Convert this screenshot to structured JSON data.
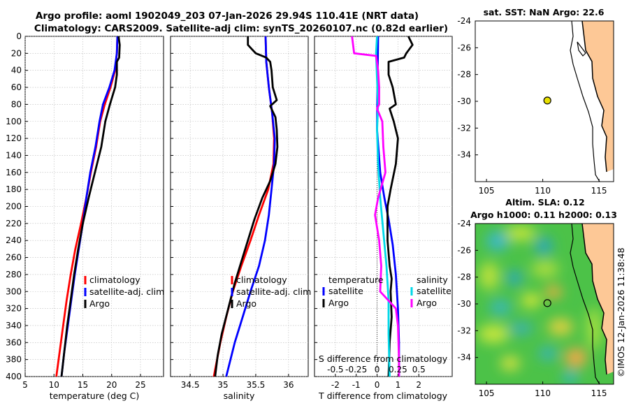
{
  "title": {
    "line1": "Argo profile: aoml 1902049_203 07-Jan-2026 29.94S 110.41E (NRT data)",
    "line2": "Climatology: CARS2009. Satellite-adj clim: synTS_20260107.nc (0.82d earlier)"
  },
  "watermark": "©IMOS 12-Jan-2026 11:38:48",
  "colors": {
    "climatology": "#ff0000",
    "satellite": "#0000ff",
    "argo": "#000000",
    "argo_s": "#ff00ff",
    "sat_s": "#00d8e8",
    "land": "#fdc896"
  },
  "chart_data": [
    {
      "type": "line",
      "id": "temperature",
      "xlabel": "temperature (deg C)",
      "ylabel": "",
      "xlim": [
        5,
        29
      ],
      "ylim": [
        400,
        0
      ],
      "xticks": [
        5,
        10,
        15,
        20,
        25
      ],
      "yticks": [
        0,
        20,
        40,
        60,
        80,
        100,
        120,
        140,
        160,
        180,
        200,
        220,
        240,
        260,
        280,
        300,
        320,
        340,
        360,
        380,
        400
      ],
      "legend": [
        "climatology",
        "satellite-adj. clim",
        "Argo"
      ],
      "legend_placement": "lower-right",
      "series": [
        {
          "name": "climatology",
          "color": "#ff0000",
          "points": [
            [
              21.0,
              0
            ],
            [
              20.9,
              20
            ],
            [
              20.6,
              40
            ],
            [
              19.8,
              60
            ],
            [
              18.8,
              80
            ],
            [
              18.0,
              100
            ],
            [
              17.3,
              130
            ],
            [
              16.4,
              160
            ],
            [
              15.6,
              190
            ],
            [
              14.7,
              220
            ],
            [
              13.7,
              250
            ],
            [
              12.9,
              280
            ],
            [
              12.2,
              310
            ],
            [
              11.6,
              340
            ],
            [
              11.0,
              370
            ],
            [
              10.4,
              400
            ]
          ]
        },
        {
          "name": "satellite-adj. clim",
          "color": "#0000ff",
          "points": [
            [
              21.0,
              0
            ],
            [
              20.9,
              20
            ],
            [
              20.5,
              40
            ],
            [
              19.6,
              60
            ],
            [
              18.5,
              80
            ],
            [
              17.9,
              100
            ],
            [
              17.2,
              130
            ],
            [
              16.3,
              160
            ],
            [
              15.6,
              190
            ],
            [
              15.0,
              220
            ],
            [
              14.3,
              250
            ],
            [
              13.6,
              280
            ],
            [
              13.0,
              310
            ],
            [
              12.4,
              340
            ],
            [
              11.8,
              370
            ],
            [
              11.3,
              400
            ]
          ]
        },
        {
          "name": "Argo",
          "color": "#000000",
          "points": [
            [
              21.2,
              0
            ],
            [
              21.4,
              10
            ],
            [
              21.3,
              25
            ],
            [
              20.9,
              30
            ],
            [
              20.9,
              45
            ],
            [
              20.6,
              60
            ],
            [
              19.7,
              80
            ],
            [
              18.9,
              100
            ],
            [
              18.2,
              130
            ],
            [
              17.1,
              160
            ],
            [
              16.0,
              190
            ],
            [
              15.0,
              220
            ],
            [
              14.2,
              250
            ],
            [
              13.5,
              280
            ],
            [
              12.9,
              310
            ],
            [
              12.3,
              340
            ],
            [
              11.8,
              370
            ],
            [
              11.3,
              400
            ]
          ]
        }
      ]
    },
    {
      "type": "line",
      "id": "salinity",
      "xlabel": "salinity",
      "xlim": [
        34.2,
        36.3
      ],
      "ylim": [
        400,
        0
      ],
      "xticks": [
        34.5,
        35,
        35.5,
        36
      ],
      "legend": [
        "climatology",
        "satellite-adj. clim",
        "Argo"
      ],
      "legend_placement": "lower-right",
      "series": [
        {
          "name": "climatology",
          "color": "#ff0000",
          "points": [
            [
              35.65,
              0
            ],
            [
              35.66,
              30
            ],
            [
              35.7,
              60
            ],
            [
              35.75,
              90
            ],
            [
              35.78,
              120
            ],
            [
              35.77,
              150
            ],
            [
              35.69,
              180
            ],
            [
              35.55,
              210
            ],
            [
              35.42,
              240
            ],
            [
              35.28,
              270
            ],
            [
              35.15,
              300
            ],
            [
              35.05,
              330
            ],
            [
              34.96,
              360
            ],
            [
              34.86,
              400
            ]
          ]
        },
        {
          "name": "satellite-adj. clim",
          "color": "#0000ff",
          "points": [
            [
              35.65,
              0
            ],
            [
              35.66,
              30
            ],
            [
              35.7,
              60
            ],
            [
              35.75,
              90
            ],
            [
              35.79,
              120
            ],
            [
              35.78,
              150
            ],
            [
              35.74,
              180
            ],
            [
              35.7,
              210
            ],
            [
              35.64,
              240
            ],
            [
              35.55,
              270
            ],
            [
              35.42,
              300
            ],
            [
              35.3,
              330
            ],
            [
              35.18,
              360
            ],
            [
              35.05,
              400
            ]
          ]
        },
        {
          "name": "Argo",
          "color": "#000000",
          "points": [
            [
              35.38,
              0
            ],
            [
              35.38,
              10
            ],
            [
              35.44,
              15
            ],
            [
              35.5,
              20
            ],
            [
              35.66,
              25
            ],
            [
              35.72,
              30
            ],
            [
              35.74,
              40
            ],
            [
              35.76,
              60
            ],
            [
              35.82,
              75
            ],
            [
              35.72,
              82
            ],
            [
              35.8,
              95
            ],
            [
              35.82,
              110
            ],
            [
              35.83,
              130
            ],
            [
              35.8,
              150
            ],
            [
              35.72,
              170
            ],
            [
              35.6,
              190
            ],
            [
              35.48,
              215
            ],
            [
              35.38,
              240
            ],
            [
              35.28,
              265
            ],
            [
              35.18,
              290
            ],
            [
              35.08,
              320
            ],
            [
              34.98,
              350
            ],
            [
              34.92,
              375
            ],
            [
              34.88,
              400
            ]
          ]
        }
      ]
    },
    {
      "type": "line",
      "id": "difference",
      "xlabel": "T difference from climatology",
      "xlabel_top": "S difference from climatology",
      "xlim": [
        -3,
        3.6
      ],
      "ylim": [
        400,
        0
      ],
      "xticks": [
        -2,
        -1,
        0,
        1,
        2
      ],
      "xticks_s": [
        "-0.5",
        "-0.25",
        "0",
        "0.25",
        "0.5"
      ],
      "legend_t": {
        "title": "temperature",
        "items": [
          "satellite",
          "Argo"
        ]
      },
      "legend_s": {
        "title": "salinity",
        "items": [
          "satellite",
          "Argo"
        ]
      },
      "series": [
        {
          "name": "T satellite",
          "color": "#0000ff",
          "points": [
            [
              0.05,
              0
            ],
            [
              0.02,
              60
            ],
            [
              0.0,
              110
            ],
            [
              0.15,
              160
            ],
            [
              0.35,
              190
            ],
            [
              0.55,
              215
            ],
            [
              0.75,
              245
            ],
            [
              0.9,
              280
            ],
            [
              1.0,
              320
            ],
            [
              1.05,
              360
            ],
            [
              1.05,
              400
            ]
          ]
        },
        {
          "name": "T Argo",
          "color": "#000000",
          "points": [
            [
              1.5,
              0
            ],
            [
              1.7,
              10
            ],
            [
              1.4,
              20
            ],
            [
              1.3,
              25
            ],
            [
              0.55,
              30
            ],
            [
              0.55,
              45
            ],
            [
              0.75,
              60
            ],
            [
              0.9,
              80
            ],
            [
              0.6,
              85
            ],
            [
              0.8,
              100
            ],
            [
              1.0,
              120
            ],
            [
              0.9,
              150
            ],
            [
              0.65,
              180
            ],
            [
              0.5,
              200
            ],
            [
              0.5,
              240
            ],
            [
              0.6,
              270
            ],
            [
              0.7,
              285
            ],
            [
              0.65,
              300
            ],
            [
              0.7,
              330
            ],
            [
              0.6,
              360
            ],
            [
              0.55,
              400
            ]
          ]
        },
        {
          "name": "S satellite",
          "color": "#00d8e8",
          "points": [
            [
              0.0,
              0
            ],
            [
              -0.05,
              20
            ],
            [
              0.0,
              50
            ],
            [
              0.05,
              80
            ],
            [
              0.0,
              110
            ],
            [
              0.05,
              150
            ],
            [
              0.15,
              190
            ],
            [
              0.3,
              230
            ],
            [
              0.45,
              270
            ],
            [
              0.55,
              310
            ],
            [
              0.55,
              350
            ],
            [
              0.6,
              400
            ]
          ]
        },
        {
          "name": "S Argo",
          "color": "#ff00ff",
          "points": [
            [
              -1.2,
              0
            ],
            [
              -1.1,
              20
            ],
            [
              -0.05,
              23
            ],
            [
              0.05,
              40
            ],
            [
              0.1,
              60
            ],
            [
              0.1,
              80
            ],
            [
              0.0,
              85
            ],
            [
              0.25,
              100
            ],
            [
              0.3,
              130
            ],
            [
              0.4,
              160
            ],
            [
              0.05,
              190
            ],
            [
              -0.1,
              210
            ],
            [
              0.1,
              240
            ],
            [
              0.2,
              270
            ],
            [
              0.15,
              300
            ],
            [
              0.9,
              320
            ],
            [
              1.0,
              340
            ],
            [
              1.05,
              380
            ],
            [
              1.05,
              400
            ]
          ]
        }
      ]
    },
    {
      "type": "scatter",
      "id": "sst-map",
      "title": "sat. SST: NaN Argo: 22.6",
      "xlim": [
        104,
        116.3
      ],
      "ylim": [
        -36,
        -24
      ],
      "xticks": [
        105,
        110,
        115
      ],
      "yticks": [
        -24,
        -26,
        -28,
        -30,
        -32,
        -34
      ],
      "points": [
        {
          "lon": 110.41,
          "lat": -29.94,
          "label": "Argo"
        }
      ]
    },
    {
      "type": "heatmap",
      "id": "sla-map",
      "title_line1": "Altim. SLA: 0.12",
      "title_line2": "Argo h1000: 0.11 h2000: 0.13",
      "xlim": [
        104,
        116.3
      ],
      "ylim": [
        -36,
        -24
      ],
      "xticks": [
        105,
        110,
        115
      ],
      "yticks": [
        -24,
        -26,
        -28,
        -30,
        -32,
        -34
      ],
      "points": [
        {
          "lon": 110.41,
          "lat": -29.94,
          "label": "Argo"
        }
      ]
    }
  ]
}
